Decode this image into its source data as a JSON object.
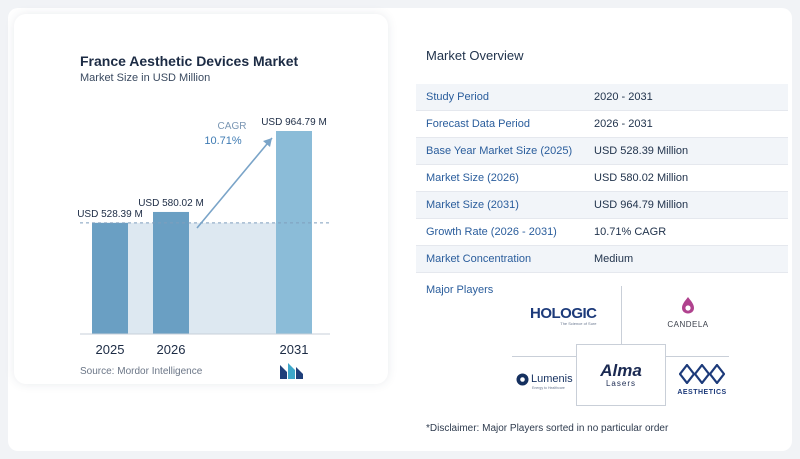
{
  "colors": {
    "bar": "#6a9fc3",
    "bar_light": "#8bbcd8",
    "shade": "#dde8f1",
    "label_blue": "#2a5d9c",
    "arrow": "#7aa4c8"
  },
  "chart_data": {
    "type": "bar",
    "title": "France Aesthetic Devices Market",
    "subtitle": "Market Size in USD Million",
    "categories": [
      "2025",
      "2026",
      "2031"
    ],
    "values": [
      528.39,
      580.02,
      964.79
    ],
    "data_labels": [
      "USD 528.39 M",
      "USD 580.02 M",
      "USD 964.79 M"
    ],
    "cagr_label": "CAGR",
    "cagr_value": "10.71%",
    "ylim": [
      0,
      1000
    ],
    "grid": false,
    "source": "Source:  Mordor Intelligence"
  },
  "overview": {
    "title": "Market Overview",
    "rows": [
      {
        "label": "Study Period",
        "value": "2020 - 2031"
      },
      {
        "label": "Forecast Data Period",
        "value": "2026 - 2031"
      },
      {
        "label": "Base Year Market Size (2025)",
        "value": "USD 528.39 Million"
      },
      {
        "label": "Market Size (2026)",
        "value": "USD 580.02 Million"
      },
      {
        "label": "Market Size (2031)",
        "value": "USD 964.79 Million"
      },
      {
        "label": "Growth Rate (2026 - 2031)",
        "value": "10.71% CAGR"
      },
      {
        "label": "Market Concentration",
        "value": "Medium"
      }
    ]
  },
  "players": {
    "title": "Major Players",
    "hologic": "HOLOGIC",
    "hologic_tag": "The Science of Sure",
    "candela": "CANDELA",
    "lumenis": "Lumenis",
    "lumenis_tag": "Energy to Healthcare",
    "alma": "Alma",
    "alma_sub": "Lasers",
    "aesthetics": "AESTHETICS"
  },
  "disclaimer": "*Disclaimer: Major Players sorted in no particular order"
}
